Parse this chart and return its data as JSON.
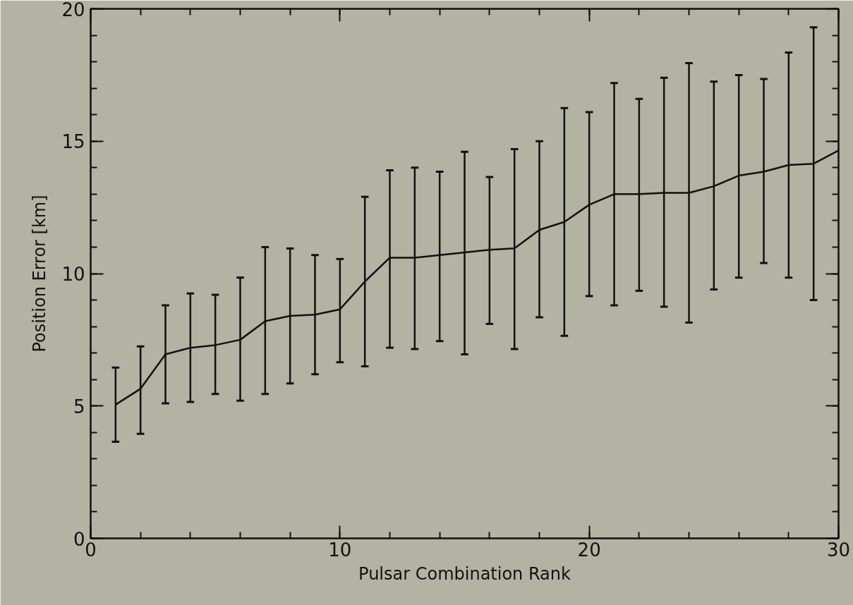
{
  "chart_data": {
    "type": "line",
    "xlabel": "Pulsar Combination Rank",
    "ylabel": "Position Error [km]",
    "x": [
      1,
      2,
      3,
      4,
      5,
      6,
      7,
      8,
      9,
      10,
      11,
      12,
      13,
      14,
      15,
      16,
      17,
      18,
      19,
      20,
      21,
      22,
      23,
      24,
      25,
      26,
      27,
      28,
      29,
      30
    ],
    "series": [
      {
        "color": "#111111",
        "values": [
          5.05,
          5.65,
          6.95,
          7.2,
          7.3,
          7.5,
          8.2,
          8.4,
          8.45,
          8.65,
          9.7,
          10.6,
          10.6,
          10.7,
          10.8,
          10.9,
          10.95,
          11.65,
          11.95,
          12.6,
          13.0,
          13.0,
          13.05,
          13.05,
          13.3,
          13.7,
          13.85,
          14.1,
          14.15,
          14.65
        ],
        "errors": [
          [
            3.65,
            6.45
          ],
          [
            3.95,
            7.25
          ],
          [
            5.1,
            8.8
          ],
          [
            5.15,
            9.25
          ],
          [
            5.45,
            9.2
          ],
          [
            5.2,
            9.85
          ],
          [
            5.45,
            11.0
          ],
          [
            5.85,
            10.95
          ],
          [
            6.2,
            10.7
          ],
          [
            6.65,
            10.55
          ],
          [
            6.5,
            12.9
          ],
          [
            7.2,
            13.9
          ],
          [
            7.15,
            14.0
          ],
          [
            7.45,
            13.85
          ],
          [
            6.95,
            14.6
          ],
          [
            8.1,
            13.65
          ],
          [
            7.15,
            14.7
          ],
          [
            8.35,
            15.0
          ],
          [
            7.65,
            16.25
          ],
          [
            9.15,
            16.1
          ],
          [
            8.8,
            17.2
          ],
          [
            9.35,
            16.6
          ],
          [
            8.75,
            17.4
          ],
          [
            8.15,
            17.95
          ],
          [
            9.4,
            17.25
          ],
          [
            9.85,
            17.5
          ],
          [
            10.4,
            17.35
          ],
          [
            9.85,
            18.35
          ],
          [
            9.0,
            19.3
          ],
          null
        ]
      }
    ],
    "xlim": [
      0,
      30
    ],
    "xticks": [
      0,
      10,
      20,
      30
    ],
    "ylim": [
      0,
      20
    ],
    "yticks": [
      0,
      5,
      10,
      15,
      20
    ],
    "grid": false,
    "marker": "none",
    "line_style": "solid"
  }
}
